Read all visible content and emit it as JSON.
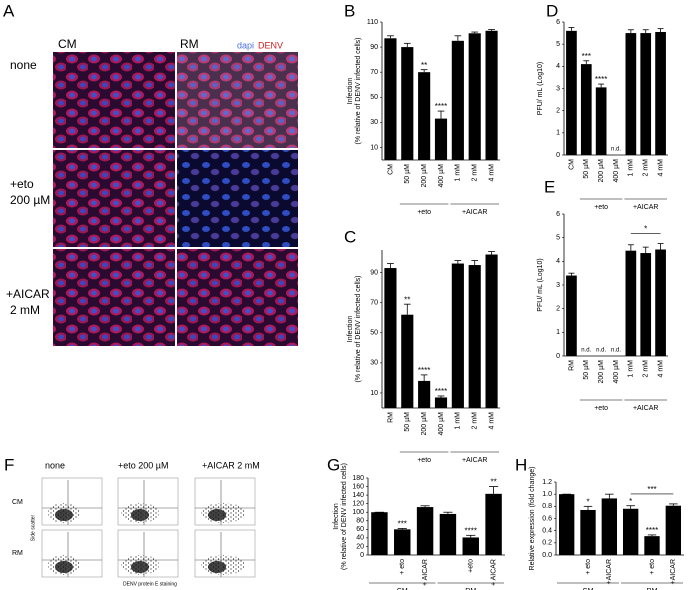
{
  "panel_a": {
    "panel": "A",
    "columns": [
      "CM",
      "RM"
    ],
    "stain_1": "dapi",
    "stain_2": "DENV",
    "rows": [
      "none",
      "+eto",
      "200 µM",
      "+AICAR",
      "2 mM"
    ]
  },
  "panel_f": {
    "panel": "F",
    "columns": [
      "none",
      "+eto 200 µM",
      "+AICAR  2 mM"
    ],
    "rows": [
      "CM",
      "RM"
    ],
    "ylabel": "Side scatter",
    "xlabel": "DENV protein E staining"
  },
  "chart_data": [
    {
      "type": "bar",
      "panel": "B",
      "ylabel": [
        "Infection",
        "(% relative of DENV infected cells)"
      ],
      "categories": [
        "CM",
        "50 µM",
        "200 µM",
        "400 µM",
        "1 mM",
        "2 mM",
        "4 mM"
      ],
      "values": [
        97,
        90,
        70,
        33,
        95,
        101,
        103
      ],
      "errors": [
        2,
        3,
        2,
        6,
        4,
        1,
        1
      ],
      "significance": [
        null,
        null,
        "**",
        "****",
        null,
        null,
        null
      ],
      "groups": [
        {
          "label": "+eto",
          "from": 1,
          "to": 3
        },
        {
          "label": "+AICAR",
          "from": 4,
          "to": 6
        }
      ],
      "color": "#000000",
      "ylim": [
        0,
        110
      ],
      "yticks": [
        10,
        30,
        50,
        70,
        90,
        110
      ]
    },
    {
      "type": "bar",
      "panel": "C",
      "ylabel": [
        "Infection",
        "(% relative of DENV infected cells)"
      ],
      "categories": [
        "RM",
        "50 µM",
        "200 µM",
        "400 µM",
        "1 mM",
        "2 mM",
        "4 mM"
      ],
      "values": [
        93,
        62,
        18,
        7,
        96,
        95,
        102
      ],
      "errors": [
        3,
        7,
        4,
        1,
        2,
        3,
        2
      ],
      "significance": [
        null,
        "**",
        "****",
        "****",
        null,
        null,
        null
      ],
      "groups": [
        {
          "label": "+eto",
          "from": 1,
          "to": 3
        },
        {
          "label": "+AICAR",
          "from": 4,
          "to": 6
        }
      ],
      "color": "#000000",
      "ylim": [
        0,
        105
      ],
      "yticks": [
        10,
        30,
        50,
        70,
        90
      ]
    },
    {
      "type": "bar",
      "panel": "D",
      "ylabel": [
        "PFU/ mL (Log10)"
      ],
      "categories": [
        "CM",
        "50 µM",
        "200 µM",
        "400 µM",
        "1 mM",
        "2 mM",
        "4 mM"
      ],
      "values": [
        5.6,
        4.1,
        3.05,
        null,
        5.5,
        5.5,
        5.55
      ],
      "errors": [
        0.15,
        0.15,
        0.15,
        null,
        0.15,
        0.15,
        0.15
      ],
      "value_labels": [
        null,
        null,
        null,
        "n.d.",
        null,
        null,
        null
      ],
      "significance": [
        null,
        "***",
        "****",
        null,
        null,
        null,
        null
      ],
      "groups": [
        {
          "label": "+eto",
          "from": 1,
          "to": 3
        },
        {
          "label": "+AICAR",
          "from": 4,
          "to": 6
        }
      ],
      "color": "#000000",
      "ylim": [
        0,
        6
      ],
      "yticks": [
        0,
        1,
        2,
        3,
        4,
        5,
        6
      ]
    },
    {
      "type": "bar",
      "panel": "E",
      "ylabel": [
        "PFU/ mL (Log10)"
      ],
      "categories": [
        "RM",
        "50 µM",
        "200 µM",
        "400 µM",
        "1 mM",
        "2 mM",
        "4 mM"
      ],
      "values": [
        3.4,
        null,
        null,
        null,
        4.45,
        4.35,
        4.5
      ],
      "errors": [
        0.1,
        null,
        null,
        null,
        0.25,
        0.25,
        0.25
      ],
      "value_labels": [
        null,
        "n.d.",
        "n.d.",
        "n.d.",
        null,
        null,
        null
      ],
      "brackets": [
        {
          "text": "*",
          "from": 4,
          "to": 6
        }
      ],
      "groups": [
        {
          "label": "+eto",
          "from": 1,
          "to": 3
        },
        {
          "label": "+AICAR",
          "from": 4,
          "to": 6
        }
      ],
      "color": "#000000",
      "ylim": [
        0,
        6
      ],
      "yticks": [
        0,
        1,
        2,
        3,
        4,
        5,
        6
      ]
    },
    {
      "type": "bar",
      "panel": "G",
      "ylabel": [
        "Infection",
        "(% relative of DENV infected cells)"
      ],
      "categories": [
        null,
        "+ eto",
        "+ AICAR",
        null,
        "+eto",
        "+ AICAR"
      ],
      "values": [
        100,
        60,
        112,
        96,
        41,
        143
      ],
      "errors": [
        0,
        2,
        3,
        4,
        5,
        17
      ],
      "significance": [
        null,
        "***",
        null,
        null,
        "****",
        "**"
      ],
      "groups": [
        {
          "label": "CM",
          "from": 0,
          "to": 2
        },
        {
          "label": "RM",
          "from": 3,
          "to": 5
        }
      ],
      "color": "#000000",
      "ylim": [
        0,
        180
      ],
      "yticks": [
        0,
        20,
        40,
        60,
        80,
        100,
        120,
        140,
        160,
        180
      ]
    },
    {
      "type": "bar",
      "panel": "H",
      "ylabel": [
        "Relative expression (fold change)"
      ],
      "categories": [
        null,
        "+ eto",
        "+AICAR",
        null,
        "+ eto",
        "+AICAR"
      ],
      "values": [
        1.0,
        0.74,
        0.93,
        0.76,
        0.31,
        0.81
      ],
      "errors": [
        0,
        0.06,
        0.07,
        0.05,
        0.02,
        0.03
      ],
      "significance": [
        null,
        "*",
        null,
        "*",
        "****",
        null
      ],
      "brackets": [
        {
          "text": "***",
          "from": 3,
          "to": 5
        }
      ],
      "groups": [
        {
          "label": "CM",
          "from": 0,
          "to": 2
        },
        {
          "label": "RM",
          "from": 3,
          "to": 5
        }
      ],
      "color": "#000000",
      "ylim": [
        0,
        1.2
      ],
      "yticks": [
        {
          "value": 0,
          "label": "0.0"
        },
        0.2,
        0.4,
        0.6,
        0.8,
        {
          "value": 1,
          "label": "1.0"
        },
        1.2
      ]
    }
  ]
}
